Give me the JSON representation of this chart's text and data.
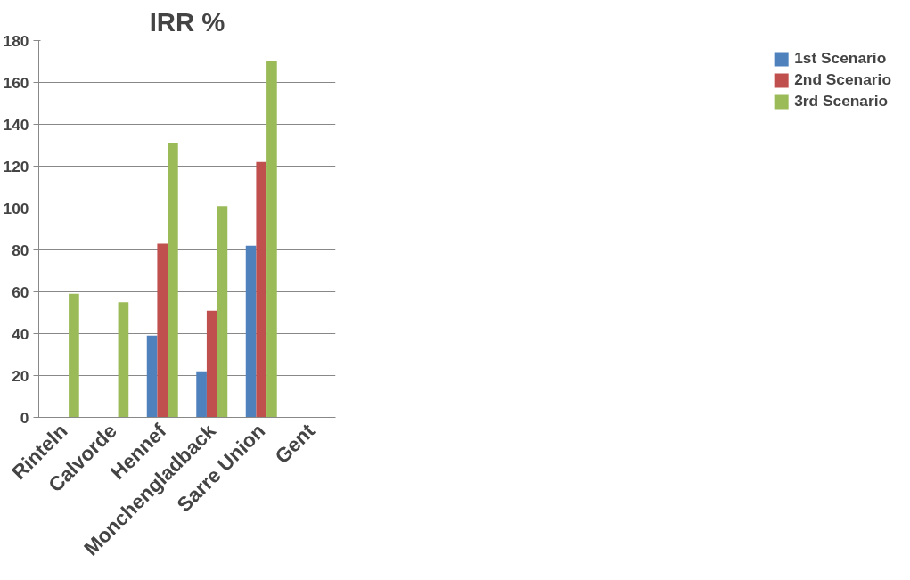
{
  "chart_data": {
    "type": "bar",
    "title": "IRR %",
    "categories": [
      "Rinteln",
      "Calvorde",
      "Hennef",
      "Monchengladback",
      "Sarre Union",
      "Gent"
    ],
    "series": [
      {
        "name": "1st Scenario",
        "color": "#4f81bd",
        "values": [
          null,
          null,
          39,
          22,
          82,
          null
        ]
      },
      {
        "name": "2nd Scenario",
        "color": "#c0504d",
        "values": [
          null,
          null,
          83,
          51,
          122,
          null
        ]
      },
      {
        "name": "3rd Scenario",
        "color": "#9bbb59",
        "values": [
          59,
          55,
          131,
          101,
          170,
          null
        ]
      }
    ],
    "ylim": [
      0,
      180
    ],
    "yticks": [
      0,
      20,
      40,
      60,
      80,
      100,
      120,
      140,
      160,
      180
    ],
    "grid": "y",
    "legend": "right"
  }
}
